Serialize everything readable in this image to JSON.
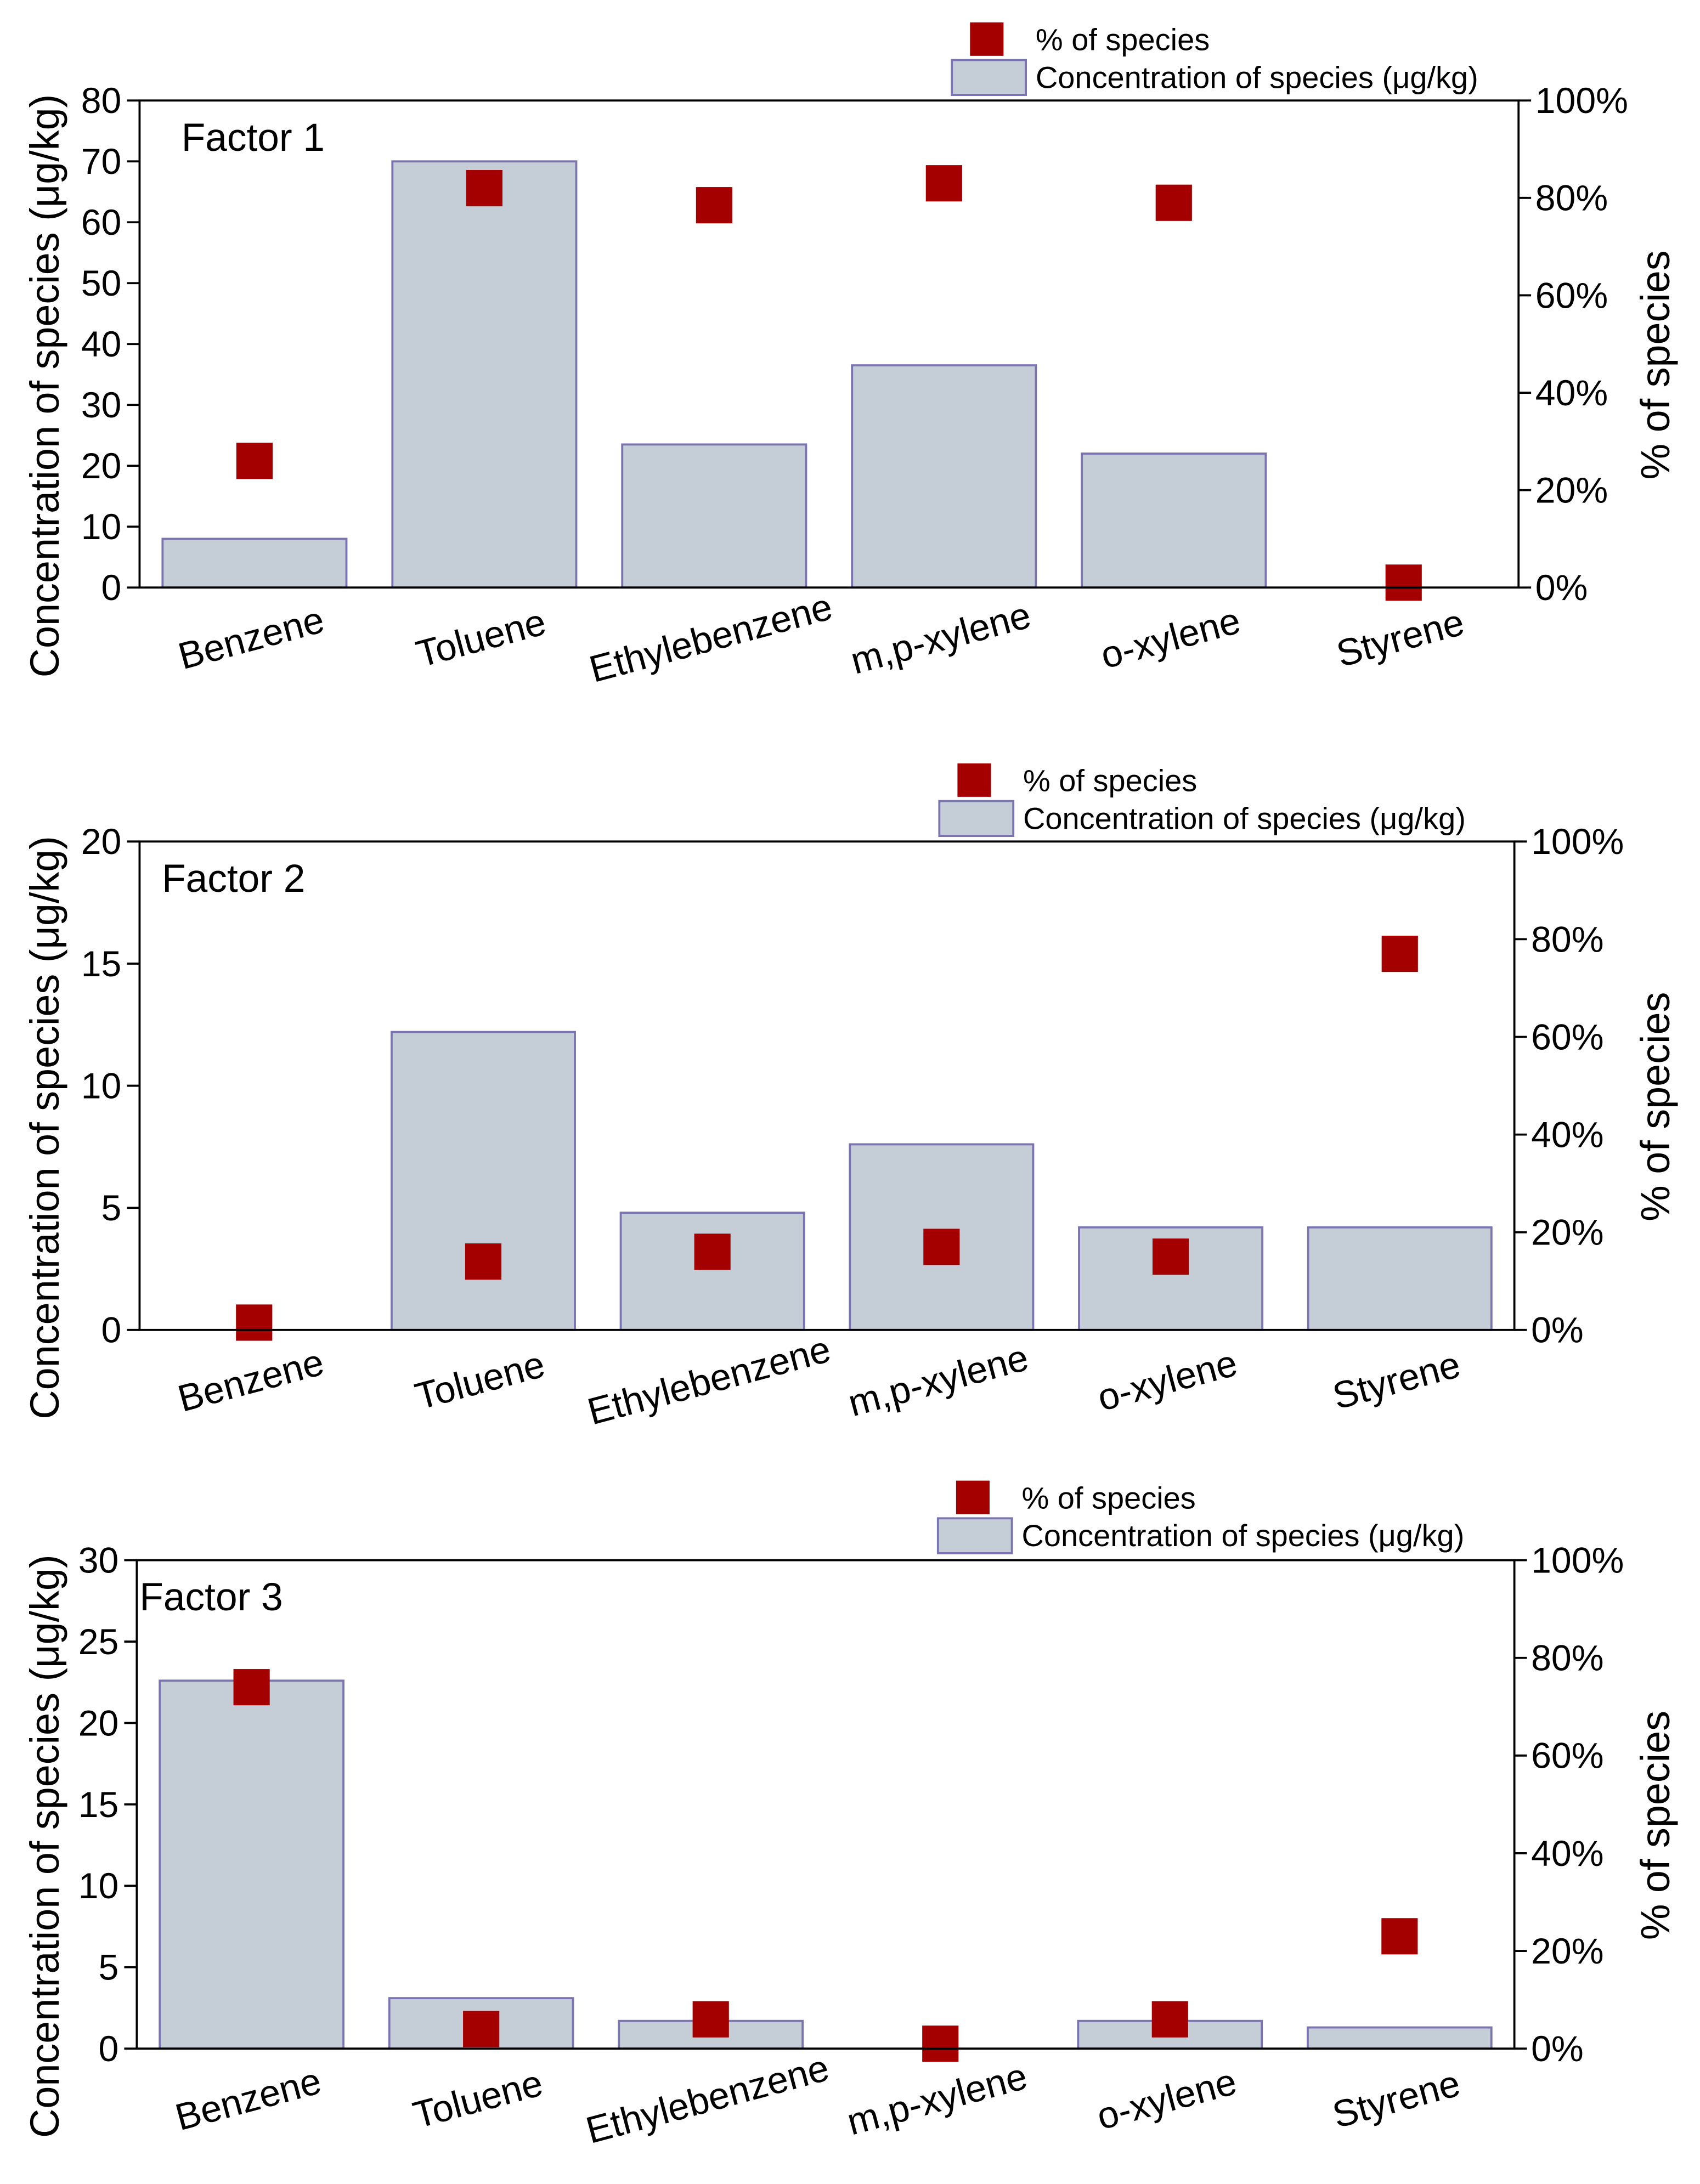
{
  "chart_data": [
    {
      "type": "bar",
      "title": "Factor 1",
      "y_label": "Concentration of species (μg/kg)",
      "y2_label": "% of species",
      "categories": [
        "Benzene",
        "Toluene",
        "Ethylebenzene",
        "m,p-xylene",
        "o-xylene",
        "Styrene"
      ],
      "series": [
        {
          "name": "Concentration of species (μg/kg)",
          "type": "bar",
          "color": "#c5ced6",
          "values": [
            8,
            70,
            23.5,
            36.5,
            22,
            0
          ]
        },
        {
          "name": "% of species",
          "type": "scatter",
          "axis": "y2",
          "color": "#a50000",
          "values": [
            26,
            82,
            78.5,
            83,
            79,
            1
          ]
        }
      ],
      "ylim": [
        0,
        80
      ],
      "yticks": [
        0,
        10,
        20,
        30,
        40,
        50,
        60,
        70,
        80
      ],
      "y2lim": [
        0,
        100
      ],
      "y2ticks": [
        {
          "value": 0,
          "label": "0%"
        },
        {
          "value": 20,
          "label": "20%"
        },
        {
          "value": 40,
          "label": "40%"
        },
        {
          "value": 60,
          "label": "60%"
        },
        {
          "value": 80,
          "label": "80%"
        },
        {
          "value": 100,
          "label": "100%"
        }
      ]
    },
    {
      "type": "bar",
      "title": "Factor 2",
      "y_label": "Concentration of species (μg/kg)",
      "y2_label": "% of species",
      "categories": [
        "Benzene",
        "Toluene",
        "Ethylebenzene",
        "m,p-xylene",
        "o-xylene",
        "Styrene"
      ],
      "series": [
        {
          "name": "Concentration of species (μg/kg)",
          "type": "bar",
          "color": "#c5ced6",
          "values": [
            0,
            12.2,
            4.8,
            7.6,
            4.2,
            4.2
          ]
        },
        {
          "name": "% of species",
          "type": "scatter",
          "axis": "y2",
          "color": "#a50000",
          "values": [
            1.5,
            14,
            16,
            17,
            15,
            77
          ]
        }
      ],
      "ylim": [
        0,
        20
      ],
      "yticks": [
        0,
        5,
        10,
        15,
        20
      ],
      "y2lim": [
        0,
        100
      ],
      "y2ticks": [
        {
          "value": 0,
          "label": "0%"
        },
        {
          "value": 20,
          "label": "20%"
        },
        {
          "value": 40,
          "label": "40%"
        },
        {
          "value": 60,
          "label": "60%"
        },
        {
          "value": 80,
          "label": "80%"
        },
        {
          "value": 100,
          "label": "100%"
        }
      ]
    },
    {
      "type": "bar",
      "title": "Factor 3",
      "y_label": "Concentration of species (μg/kg)",
      "y2_label": "% of species",
      "categories": [
        "Benzene",
        "Toluene",
        "Ethylebenzene",
        "m,p-xylene",
        "o-xylene",
        "Styrene"
      ],
      "series": [
        {
          "name": "Concentration of species (μg/kg)",
          "type": "bar",
          "color": "#c5ced6",
          "values": [
            22.6,
            3.1,
            1.7,
            0,
            1.7,
            1.3
          ]
        },
        {
          "name": "% of species",
          "type": "scatter",
          "axis": "y2",
          "color": "#a50000",
          "values": [
            74,
            4,
            6,
            1,
            6,
            23
          ]
        }
      ],
      "ylim": [
        0,
        30
      ],
      "yticks": [
        0,
        5,
        10,
        15,
        20,
        25,
        30
      ],
      "y2lim": [
        0,
        100
      ],
      "y2ticks": [
        {
          "value": 0,
          "label": "0%"
        },
        {
          "value": 20,
          "label": "20%"
        },
        {
          "value": 40,
          "label": "40%"
        },
        {
          "value": 60,
          "label": "60%"
        },
        {
          "value": 80,
          "label": "80%"
        },
        {
          "value": 100,
          "label": "100%"
        }
      ]
    }
  ]
}
